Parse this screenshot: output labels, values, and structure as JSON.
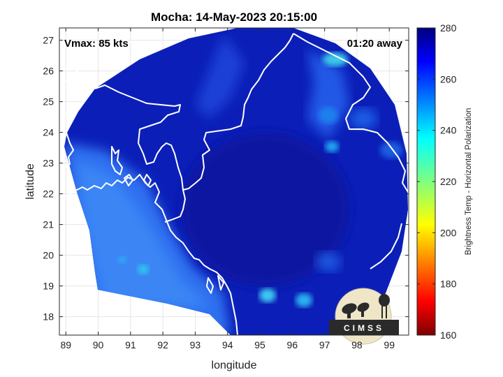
{
  "title": "Mocha: 14-May-2023 20:15:00",
  "overlay": {
    "vmax": "Vmax: 85 kts",
    "time_away": "01:20 away"
  },
  "map": {
    "xlabel": "longitude",
    "ylabel": "latitude",
    "xlim": [
      88.8,
      99.6
    ],
    "ylim": [
      17.4,
      27.4
    ],
    "xticks": [
      89,
      90,
      91,
      92,
      93,
      94,
      95,
      96,
      97,
      98,
      99
    ],
    "yticks": [
      18,
      19,
      20,
      21,
      22,
      23,
      24,
      25,
      26,
      27
    ],
    "grid": true
  },
  "colorbar": {
    "label": "Brightness Temp - Horizontal Polarization",
    "range": [
      160,
      280
    ],
    "ticks": [
      160,
      180,
      200,
      220,
      240,
      260,
      280
    ],
    "colormap": "jet"
  },
  "logo": {
    "text": "CIMSS"
  }
}
